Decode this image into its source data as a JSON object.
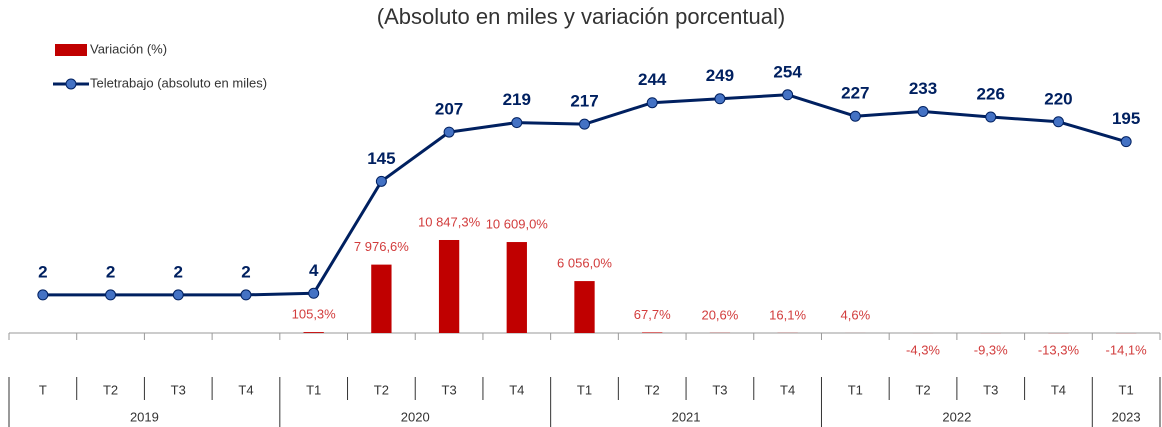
{
  "chart_data": {
    "type": "combo",
    "title": "(Absoluto en miles y variación porcentual)",
    "categories": [
      "T",
      "T2",
      "T3",
      "T4",
      "T1",
      "T2",
      "T3",
      "T4",
      "T1",
      "T2",
      "T3",
      "T4",
      "T1",
      "T2",
      "T3",
      "T4",
      "T1"
    ],
    "years": [
      "2019",
      "2019",
      "2019",
      "2019",
      "2020",
      "2020",
      "2020",
      "2020",
      "2021",
      "2021",
      "2021",
      "2021",
      "2022",
      "2022",
      "2022",
      "2022",
      "2023"
    ],
    "series": [
      {
        "name": "Variación (%)",
        "type": "bar",
        "color": "#c00000",
        "label_color": "#d23c3c",
        "values": [
          null,
          null,
          null,
          null,
          105.3,
          7976.6,
          10847.3,
          10609.0,
          6056.0,
          67.7,
          20.6,
          16.1,
          4.6,
          -4.3,
          -9.3,
          -13.3,
          -14.1
        ],
        "value_labels": [
          null,
          null,
          null,
          null,
          "105,3%",
          "7 976,6%",
          "10 847,3%",
          "10 609,0%",
          "6 056,0%",
          "67,7%",
          "20,6%",
          "16,1%",
          "4,6%",
          "-4,3%",
          "-9,3%",
          "-13,3%",
          "-14,1%"
        ]
      },
      {
        "name": "Teletrabajo (absoluto en miles)",
        "type": "line",
        "axis": "y2",
        "color": "#002060",
        "marker_color": "#4472c4",
        "values": [
          2,
          2,
          2,
          2,
          4,
          145,
          207,
          219,
          217,
          244,
          249,
          254,
          227,
          233,
          226,
          220,
          195
        ]
      }
    ],
    "ylim": [
      0,
      34174
    ],
    "y2lim": [
      -46,
      323
    ],
    "grid": false
  }
}
